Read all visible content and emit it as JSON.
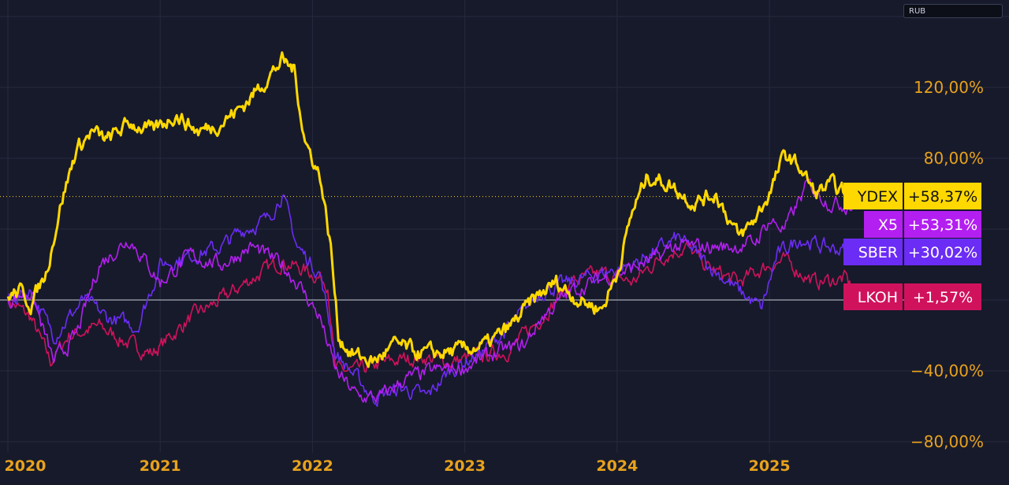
{
  "currency_label": "RUB",
  "colors": {
    "background": "#171a2b",
    "grid": "#262a3d",
    "axis_text": "#e8a21c",
    "YDEX": "#ffd800",
    "X5": "#b31ff0",
    "SBER": "#6b2cf5",
    "LKOH": "#d0125c"
  },
  "chart_data": {
    "type": "line",
    "title": "",
    "xlabel": "",
    "ylabel": "",
    "y_unit": "%",
    "ylim": [
      -85,
      155
    ],
    "xlim": [
      2020.0,
      2025.9
    ],
    "y_ticks": [
      {
        "value": 120,
        "label": "120,00%"
      },
      {
        "value": 80,
        "label": "80,00%"
      },
      {
        "value": -40,
        "label": "−40,00%"
      },
      {
        "value": -80,
        "label": "−80,00%"
      }
    ],
    "x_ticks": [
      {
        "value": 2020.0,
        "label": "2020"
      },
      {
        "value": 2021.0,
        "label": "2021"
      },
      {
        "value": 2022.0,
        "label": "2022"
      },
      {
        "value": 2023.0,
        "label": "2023"
      },
      {
        "value": 2024.0,
        "label": "2024"
      },
      {
        "value": 2025.0,
        "label": "2025"
      }
    ],
    "grid": true,
    "legend": "right-edge value tags",
    "series": [
      {
        "name": "LKOH",
        "last_label": "+1,57%",
        "x": [
          2020.0,
          2020.15,
          2020.28,
          2020.4,
          2020.6,
          2020.8,
          2020.95,
          2021.2,
          2021.4,
          2021.6,
          2021.8,
          2022.0,
          2022.1,
          2022.15,
          2022.3,
          2022.5,
          2022.7,
          2022.9,
          2023.1,
          2023.3,
          2023.5,
          2023.7,
          2023.9,
          2024.1,
          2024.3,
          2024.45,
          2024.6,
          2024.8,
          2025.0,
          2025.1,
          2025.3,
          2025.5,
          2025.57
        ],
        "values": [
          0,
          -10,
          -35,
          -20,
          -15,
          -25,
          -30,
          -10,
          0,
          12,
          22,
          15,
          10,
          -40,
          -40,
          -35,
          -32,
          -35,
          -32,
          -28,
          -10,
          10,
          15,
          10,
          25,
          30,
          18,
          10,
          20,
          22,
          10,
          12,
          1.57
        ]
      },
      {
        "name": "SBER",
        "last_label": "+30,02%",
        "x": [
          2020.0,
          2020.15,
          2020.3,
          2020.5,
          2020.65,
          2020.85,
          2021.0,
          2021.2,
          2021.4,
          2021.55,
          2021.7,
          2021.8,
          2021.9,
          2022.05,
          2022.15,
          2022.4,
          2022.6,
          2022.75,
          2022.9,
          2023.1,
          2023.3,
          2023.5,
          2023.7,
          2023.9,
          2024.1,
          2024.3,
          2024.4,
          2024.6,
          2024.8,
          2024.95,
          2025.05,
          2025.2,
          2025.35,
          2025.5,
          2025.57
        ],
        "values": [
          0,
          5,
          -20,
          0,
          -10,
          -15,
          20,
          25,
          30,
          40,
          45,
          60,
          30,
          15,
          -30,
          -55,
          -50,
          -55,
          -40,
          -30,
          -15,
          5,
          10,
          15,
          20,
          30,
          35,
          20,
          5,
          -5,
          25,
          35,
          30,
          28,
          30.02
        ]
      },
      {
        "name": "X5",
        "last_label": "+53,31%",
        "x": [
          2020.0,
          2020.15,
          2020.3,
          2020.45,
          2020.6,
          2020.8,
          2021.0,
          2021.2,
          2021.4,
          2021.6,
          2021.8,
          2021.9,
          2022.05,
          2022.15,
          2022.3,
          2022.45,
          2022.6,
          2022.8,
          2023.0,
          2023.2,
          2023.4,
          2023.5,
          2023.7,
          2023.9,
          2024.1,
          2024.3,
          2024.35,
          2024.75,
          2024.9,
          2025.0,
          2025.1,
          2025.25,
          2025.4,
          2025.57
        ],
        "values": [
          0,
          5,
          -35,
          -20,
          20,
          35,
          10,
          25,
          20,
          30,
          20,
          10,
          -10,
          -40,
          -55,
          -55,
          -45,
          -40,
          -38,
          -30,
          -25,
          -10,
          5,
          12,
          18,
          25,
          30,
          30,
          32,
          45,
          40,
          65,
          55,
          53.31
        ]
      },
      {
        "name": "YDEX",
        "last_label": "+58,37%",
        "x": [
          2020.0,
          2020.08,
          2020.15,
          2020.25,
          2020.35,
          2020.45,
          2020.55,
          2020.65,
          2020.8,
          2020.95,
          2021.1,
          2021.25,
          2021.4,
          2021.55,
          2021.7,
          2021.8,
          2021.88,
          2021.95,
          2022.05,
          2022.12,
          2022.17,
          2022.25,
          2022.4,
          2022.55,
          2022.7,
          2022.85,
          2023.0,
          2023.15,
          2023.3,
          2023.45,
          2023.6,
          2023.75,
          2023.9,
          2024.0,
          2024.1,
          2024.2,
          2024.35,
          2024.5,
          2024.65,
          2024.8,
          2024.9,
          2025.0,
          2025.1,
          2025.2,
          2025.3,
          2025.4,
          2025.5,
          2025.57
        ],
        "values": [
          2,
          5,
          -2,
          15,
          55,
          85,
          95,
          90,
          100,
          95,
          105,
          95,
          100,
          110,
          125,
          135,
          130,
          90,
          70,
          30,
          -20,
          -30,
          -35,
          -25,
          -30,
          -30,
          -28,
          -25,
          -15,
          0,
          10,
          0,
          -5,
          15,
          50,
          70,
          65,
          55,
          60,
          35,
          45,
          60,
          82,
          75,
          60,
          65,
          60,
          58.37
        ]
      }
    ]
  }
}
